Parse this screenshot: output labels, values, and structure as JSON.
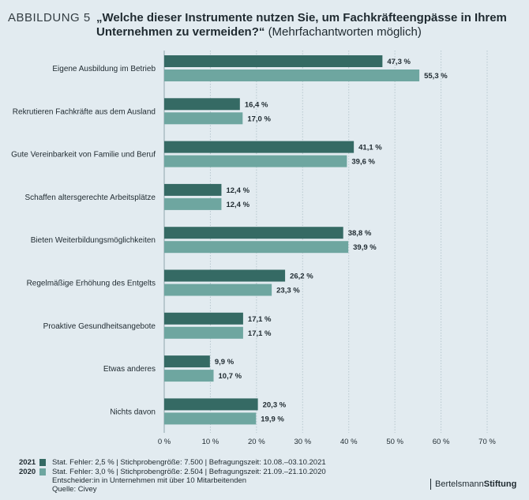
{
  "header": {
    "figure_label": "ABBILDUNG 5",
    "title": "„Welche dieser Instrumente nutzen Sie, um Fachkräfteengpässe in Ihrem Unternehmen zu vermeiden?“",
    "subtitle": "(Mehrfachantworten möglich)"
  },
  "colors": {
    "dark": "#356a64",
    "light": "#6ea6a0",
    "grid": "#b8c8cf",
    "background": "#e2ebf0"
  },
  "chart_data": {
    "type": "bar",
    "orientation": "horizontal",
    "categories": [
      "Eigene Ausbildung im Betrieb",
      "Rekrutieren Fachkräfte aus dem Ausland",
      "Gute Vereinbarkeit von Familie und Beruf",
      "Schaffen altersgerechte Arbeitsplätze",
      "Bieten Weiterbildungsmöglichkeiten",
      "Regelmäßige Erhöhung des Entgelts",
      "Proaktive Gesundheitsangebote",
      "Etwas anderes",
      "Nichts davon"
    ],
    "series": [
      {
        "name": "2021",
        "color": "#356a64",
        "values": [
          47.3,
          16.4,
          41.1,
          12.4,
          38.8,
          26.2,
          17.1,
          9.9,
          20.3
        ],
        "labels": [
          "47,3 %",
          "16,4 %",
          "41,1 %",
          "12,4 %",
          "38,8 %",
          "26,2 %",
          "17,1 %",
          "9,9 %",
          "20,3 %"
        ]
      },
      {
        "name": "2020",
        "color": "#6ea6a0",
        "values": [
          55.3,
          17.0,
          39.6,
          12.4,
          39.9,
          23.3,
          17.1,
          10.7,
          19.9
        ],
        "labels": [
          "55,3 %",
          "17,0 %",
          "39,6 %",
          "12,4 %",
          "39,9 %",
          "23,3 %",
          "17,1 %",
          "10,7 %",
          "19,9 %"
        ]
      }
    ],
    "xlim": [
      0,
      70
    ],
    "xticks": [
      0,
      10,
      20,
      30,
      40,
      50,
      60,
      70
    ],
    "xtick_labels": [
      "0 %",
      "10 %",
      "20 %",
      "30 %",
      "40 %",
      "50 %",
      "60 %",
      "70 %"
    ],
    "grid": true
  },
  "legend": {
    "items": [
      {
        "year": "2021",
        "text": "Stat. Fehler: 2,5 % | Stichprobengröße: 7.500 | Befragungszeit: 10.08.–03.10.2021"
      },
      {
        "year": "2020",
        "text": "Stat. Fehler: 3,0 % | Stichprobengröße: 2.504 | Befragungszeit: 21.09.–21.10.2020"
      }
    ],
    "note": "Entscheider:in in Unternehmen mit über 10 Mitarbeitenden",
    "source": "Quelle: Civey"
  },
  "brand": {
    "part1": "Bertelsmann",
    "part2": "Stiftung"
  }
}
